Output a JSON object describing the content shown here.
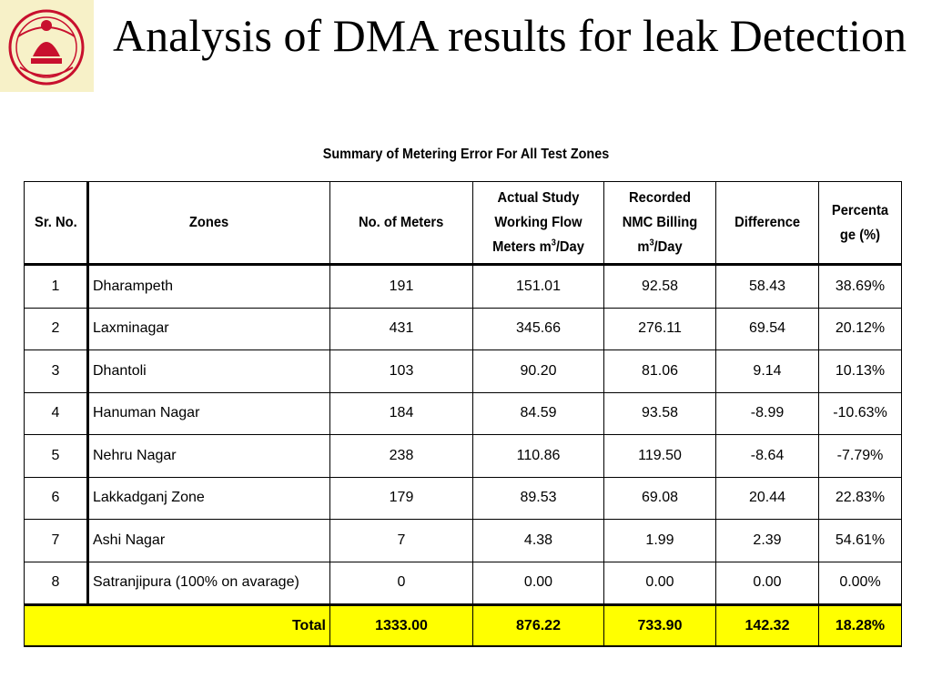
{
  "title": "Analysis of DMA results for leak Detection",
  "subtitle": "Summary of Metering Error For All  Test Zones",
  "table": {
    "headers": {
      "sr_no": "Sr. No.",
      "zones": "Zones",
      "meters": "No. of Meters",
      "actual_a": "Actual Study Working Flow Meters m",
      "actual_sup": "3",
      "actual_b": "/Day",
      "recorded_a": "Recorded NMC Billing m",
      "recorded_sup": "3",
      "recorded_b": "/Day",
      "difference": "Difference",
      "percentage": "Percenta ge (%)"
    },
    "rows": [
      {
        "sr": "1",
        "zone": "Dharampeth",
        "meters": "191",
        "actual": "151.01",
        "recorded": "92.58",
        "diff": "58.43",
        "pct": "38.69%"
      },
      {
        "sr": "2",
        "zone": "Laxminagar",
        "meters": "431",
        "actual": "345.66",
        "recorded": "276.11",
        "diff": "69.54",
        "pct": "20.12%"
      },
      {
        "sr": "3",
        "zone": "Dhantoli",
        "meters": "103",
        "actual": "90.20",
        "recorded": "81.06",
        "diff": "9.14",
        "pct": "10.13%"
      },
      {
        "sr": "4",
        "zone": "Hanuman Nagar",
        "meters": "184",
        "actual": "84.59",
        "recorded": "93.58",
        "diff": "-8.99",
        "pct": "-10.63%"
      },
      {
        "sr": "5",
        "zone": "Nehru Nagar",
        "meters": "238",
        "actual": "110.86",
        "recorded": "119.50",
        "diff": "-8.64",
        "pct": "-7.79%"
      },
      {
        "sr": "6",
        "zone": "Lakkadganj Zone",
        "meters": "179",
        "actual": "89.53",
        "recorded": "69.08",
        "diff": "20.44",
        "pct": "22.83%"
      },
      {
        "sr": "7",
        "zone": "Ashi Nagar",
        "meters": "7",
        "actual": "4.38",
        "recorded": "1.99",
        "diff": "2.39",
        "pct": "54.61%"
      },
      {
        "sr": "8",
        "zone": "Satranjipura (100% on avarage)",
        "meters": "0",
        "actual": "0.00",
        "recorded": "0.00",
        "diff": "0.00",
        "pct": "0.00%"
      }
    ],
    "total": {
      "label": "Total",
      "meters": "1333.00",
      "actual": "876.22",
      "recorded": "733.90",
      "diff": "142.32",
      "pct": "18.28%"
    }
  },
  "colors": {
    "total_row": "#ffff00",
    "logo_bg": "#f7f1c8",
    "logo_emblem": "#c8102e"
  },
  "logo_icon": "institution-emblem-icon"
}
